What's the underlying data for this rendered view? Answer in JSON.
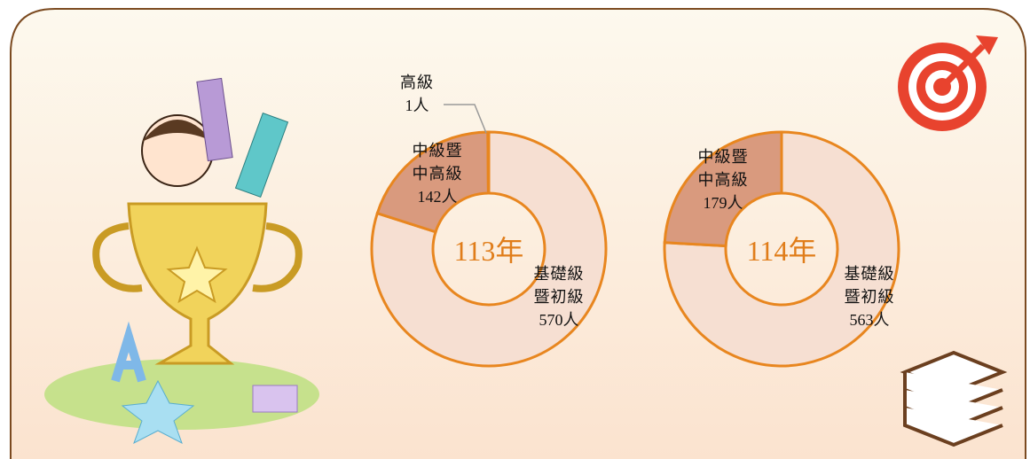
{
  "chart_data": [
    {
      "type": "pie",
      "donut": true,
      "center_label": "113年",
      "categories": [
        "基礎級暨初級",
        "中級暨中高級",
        "高級"
      ],
      "values": [
        570,
        142,
        1
      ],
      "value_labels": [
        "570人",
        "142人",
        "1人"
      ],
      "colors": [
        "#f6dfd2",
        "#d99a7e",
        "#d99a7e"
      ],
      "edge_color": "#e8861f"
    },
    {
      "type": "pie",
      "donut": true,
      "center_label": "114年",
      "categories": [
        "基礎級暨初級",
        "中級暨中高級"
      ],
      "values": [
        563,
        179
      ],
      "value_labels": [
        "563人",
        "179人"
      ],
      "colors": [
        "#f6dfd2",
        "#d99a7e"
      ],
      "edge_color": "#e8861f"
    }
  ]
}
